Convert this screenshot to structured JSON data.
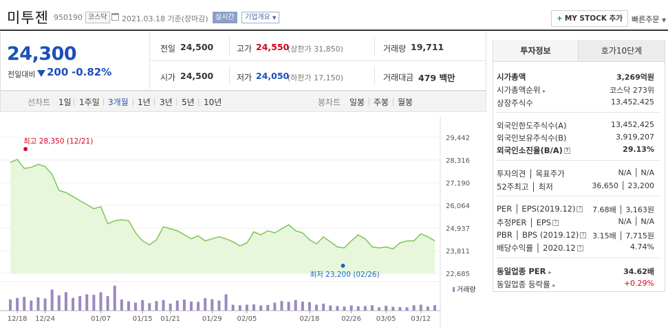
{
  "header": {
    "stock_name": "미투젠",
    "stock_code": "950190",
    "market": "코스닥",
    "date_text": "2021.03.18  기준(장마감)",
    "realtime_label": "실시간",
    "overview_label": "기업개요",
    "mystock_label": "MY STOCK 추가",
    "quick_order_label": "빠른주문"
  },
  "price": {
    "current": "24,300",
    "prev_label": "전일대비",
    "change": "200",
    "change_pct": "-0.82%",
    "colors": {
      "down": "#1d4fb8",
      "up": "#d9001b"
    }
  },
  "quote": {
    "prev_close_label": "전일",
    "prev_close": "24,500",
    "high_label": "고가",
    "high": "24,550",
    "upper_limit": "(상한가 31,850)",
    "volume_label": "거래량",
    "volume": "19,711",
    "open_label": "시가",
    "open": "24,500",
    "low_label": "저가",
    "low": "24,050",
    "lower_limit": "(하한가 17,150)",
    "amount_label": "거래대금",
    "amount": "479 백만"
  },
  "periods": {
    "line_label": "선차트",
    "items": [
      "1일",
      "1주일",
      "3개월",
      "1년",
      "3년",
      "5년",
      "10년"
    ],
    "active": "3개월",
    "candle_label": "봉차트",
    "candle_items": [
      "일봉",
      "주봉",
      "월봉"
    ]
  },
  "chart_data": {
    "type": "area",
    "y_ticks": [
      "29,442",
      "28,316",
      "27,190",
      "26,064",
      "24,937",
      "23,811",
      "22,685"
    ],
    "ylim": [
      22685,
      29442
    ],
    "x_ticks": [
      "12/18",
      "12/24",
      "01/07",
      "01/15",
      "01/21",
      "01/29",
      "02/05",
      "02/18",
      "02/26",
      "03/05",
      "03/12"
    ],
    "x_tick_index": [
      1,
      5,
      13,
      19,
      23,
      29,
      34,
      43,
      49,
      54,
      59
    ],
    "prices": [
      28200,
      28350,
      27900,
      27950,
      28100,
      28000,
      27600,
      26800,
      26700,
      26500,
      26300,
      26100,
      25900,
      26000,
      25150,
      25300,
      25350,
      25300,
      24700,
      24300,
      24100,
      24350,
      25000,
      24900,
      24800,
      24600,
      24400,
      24550,
      24300,
      24400,
      24500,
      24400,
      24250,
      24050,
      24200,
      24750,
      24600,
      24800,
      24700,
      24900,
      25100,
      24800,
      24700,
      24350,
      24150,
      24500,
      24250,
      24000,
      23950,
      24300,
      24600,
      24400,
      24000,
      23950,
      24000,
      23900,
      24200,
      24300,
      24300,
      24650,
      24500,
      24300
    ],
    "volumes": [
      0.42,
      0.48,
      0.52,
      0.38,
      0.5,
      0.46,
      0.8,
      0.58,
      0.7,
      0.48,
      0.55,
      0.62,
      0.6,
      0.7,
      0.55,
      0.95,
      0.42,
      0.35,
      0.3,
      0.4,
      0.28,
      0.36,
      0.4,
      0.26,
      0.38,
      0.42,
      0.34,
      0.33,
      0.47,
      0.43,
      0.38,
      0.62,
      0.22,
      0.2,
      0.22,
      0.23,
      0.19,
      0.21,
      0.3,
      0.36,
      0.33,
      0.4,
      0.34,
      0.32,
      0.22,
      0.26,
      0.19,
      0.17,
      0.15,
      0.19,
      0.16,
      0.17,
      0.2,
      0.12,
      0.18,
      0.14,
      0.13,
      0.12,
      0.2,
      0.22,
      0.15,
      0.2
    ],
    "max_label": "최고 28,350 (12/21)",
    "min_label": "최저 23,200 (02/26)",
    "max_index": 1,
    "max_value": 28350,
    "min_index": 48,
    "min_value": 23200,
    "volume_legend": "거래량",
    "colors": {
      "line": "#7cc451",
      "fill": "#e8f7dc",
      "volume": "#9b88c2",
      "max": "#d9001b",
      "min": "#1d65c4"
    }
  },
  "info": {
    "tab_active": "투자정보",
    "tab_other": "호가10단계",
    "market_cap_label": "시가총액",
    "market_cap": "3,269억원",
    "rank_label": "시가총액순위",
    "rank": "코스닥 273위",
    "shares_label": "상장주식수",
    "shares": "13,452,425",
    "foreign_limit_label": "외국인한도주식수(A)",
    "foreign_limit": "13,452,425",
    "foreign_hold_label": "외국인보유주식수(B)",
    "foreign_hold": "3,919,207",
    "foreign_ratio_label": "외국인소진율(B/A)",
    "foreign_ratio": "29.13%",
    "opinion_label": "투자의견 │ 목표주가",
    "opinion": "N/A │ N/A",
    "week52_label": "52주최고 │ 최저",
    "week52": "36,650 │ 23,200",
    "per_label": "PER │ EPS(2019.12)",
    "per": "7.68배 │ 3,163원",
    "est_per_label": "추정PER │ EPS",
    "est_per": "N/A │ N/A",
    "pbr_label": "PBR │ BPS (2019.12)",
    "pbr": "3.15배 │ 7,715원",
    "dividend_label": "배당수익률 │ 2020.12",
    "dividend": "4.74%",
    "industry_per_label": "동일업종 PER",
    "industry_per": "34.62배",
    "industry_rate_label": "동일업종 등락률",
    "industry_rate": "+0.29%"
  }
}
